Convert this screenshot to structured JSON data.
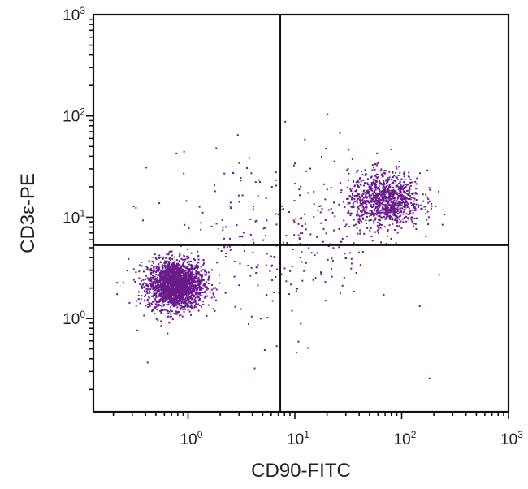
{
  "chart_data": {
    "type": "scatter",
    "title": "",
    "xlabel": "CD90-FITC",
    "ylabel": "CD3ε-PE",
    "xscale": "log",
    "yscale": "log",
    "xlim": [
      0.13,
      1000
    ],
    "ylim": [
      0.12,
      1000
    ],
    "x_tick_labels": [
      {
        "value": 1,
        "base": "10",
        "exp": "0"
      },
      {
        "value": 10,
        "base": "10",
        "exp": "1"
      },
      {
        "value": 100,
        "base": "10",
        "exp": "2"
      },
      {
        "value": 1000,
        "base": "10",
        "exp": "3"
      }
    ],
    "y_tick_labels": [
      {
        "value": 1,
        "base": "10",
        "exp": "0"
      },
      {
        "value": 10,
        "base": "10",
        "exp": "1"
      },
      {
        "value": 100,
        "base": "10",
        "exp": "2"
      },
      {
        "value": 1000,
        "base": "10",
        "exp": "3"
      }
    ],
    "quadrant_gates": {
      "x": 7.3,
      "y": 5.3
    },
    "grid": false,
    "legend": "none",
    "point_color": "#6a1b8a",
    "populations": [
      {
        "center": [
          0.75,
          2.2
        ],
        "approx_points": 2100,
        "spread_log10": [
          0.13,
          0.12
        ]
      },
      {
        "center": [
          68,
          15
        ],
        "approx_points": 1000,
        "spread_log10": [
          0.17,
          0.14
        ]
      },
      {
        "center": [
          7,
          6
        ],
        "approx_points": 300,
        "spread_log10": [
          0.55,
          0.45
        ]
      }
    ]
  }
}
